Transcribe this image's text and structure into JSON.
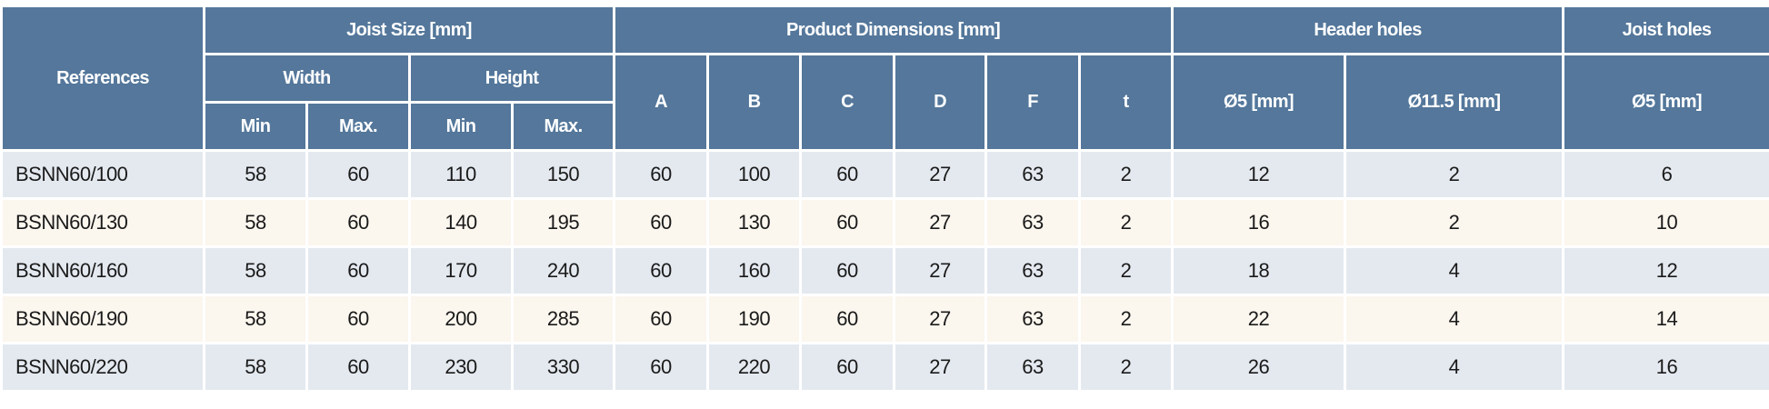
{
  "headers": {
    "references": "References",
    "joist_size": "Joist Size [mm]",
    "width": "Width",
    "height": "Height",
    "min": "Min",
    "max": "Max.",
    "product_dimensions": "Product Dimensions [mm]",
    "dims": [
      "A",
      "B",
      "C",
      "D",
      "F",
      "t"
    ],
    "header_holes": "Header holes",
    "joist_holes": "Joist holes",
    "hh_d5": "Ø5 [mm]",
    "hh_d115": "Ø11.5 [mm]",
    "jh_d5": "Ø5 [mm]"
  },
  "colors": {
    "header_bg": "#54779b",
    "row_odd": "#e4e9f0",
    "row_even": "#fbf6ee"
  },
  "rows": [
    [
      "BSNN60/100",
      "58",
      "60",
      "110",
      "150",
      "60",
      "100",
      "60",
      "27",
      "63",
      "2",
      "12",
      "2",
      "6"
    ],
    [
      "BSNN60/130",
      "58",
      "60",
      "140",
      "195",
      "60",
      "130",
      "60",
      "27",
      "63",
      "2",
      "16",
      "2",
      "10"
    ],
    [
      "BSNN60/160",
      "58",
      "60",
      "170",
      "240",
      "60",
      "160",
      "60",
      "27",
      "63",
      "2",
      "18",
      "4",
      "12"
    ],
    [
      "BSNN60/190",
      "58",
      "60",
      "200",
      "285",
      "60",
      "190",
      "60",
      "27",
      "63",
      "2",
      "22",
      "4",
      "14"
    ],
    [
      "BSNN60/220",
      "58",
      "60",
      "230",
      "330",
      "60",
      "220",
      "60",
      "27",
      "63",
      "2",
      "26",
      "4",
      "16"
    ]
  ]
}
